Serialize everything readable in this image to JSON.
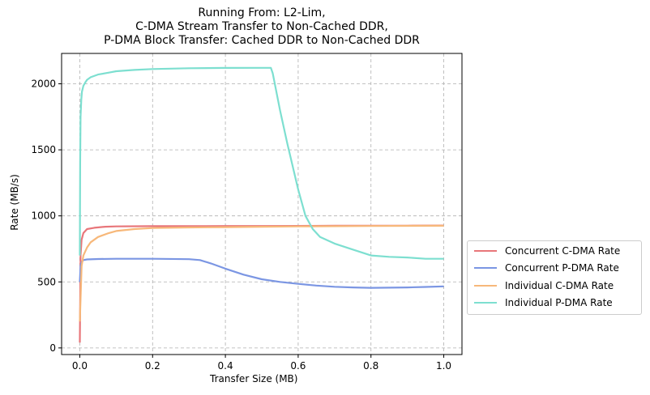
{
  "chart_data": {
    "type": "line",
    "title": [
      "Running From: L2-Lim,",
      "C-DMA Stream Transfer to Non-Cached DDR,",
      "P-DMA Block Transfer: Cached DDR to Non-Cached DDR"
    ],
    "xlabel": "Transfer Size (MB)",
    "ylabel": "Rate (MB/s)",
    "xlim": [
      -0.05,
      1.05
    ],
    "ylim": [
      -50,
      2230
    ],
    "xticks": [
      0.0,
      0.2,
      0.4,
      0.6,
      0.8,
      1.0
    ],
    "xtick_labels": [
      "0.0",
      "0.2",
      "0.4",
      "0.6",
      "0.8",
      "1.0"
    ],
    "yticks": [
      0,
      500,
      1000,
      1500,
      2000
    ],
    "ytick_labels": [
      "0",
      "500",
      "1000",
      "1500",
      "2000"
    ],
    "grid": true,
    "legend_position": "outside-right",
    "series": [
      {
        "name": "Concurrent C-DMA Rate",
        "color": "#e8767a",
        "x": [
          0,
          0.002,
          0.005,
          0.01,
          0.02,
          0.04,
          0.07,
          0.1,
          0.2,
          0.3,
          0.4,
          0.5,
          0.6,
          0.7,
          0.8,
          0.9,
          1.0
        ],
        "y": [
          40,
          700,
          820,
          870,
          900,
          910,
          918,
          920,
          922,
          922,
          923,
          923,
          924,
          925,
          926,
          926,
          927
        ]
      },
      {
        "name": "Concurrent P-DMA Rate",
        "color": "#7b96e3",
        "x": [
          0,
          0.002,
          0.005,
          0.01,
          0.02,
          0.05,
          0.1,
          0.2,
          0.3,
          0.33,
          0.36,
          0.4,
          0.45,
          0.5,
          0.55,
          0.6,
          0.65,
          0.7,
          0.75,
          0.8,
          0.85,
          0.9,
          0.95,
          1.0
        ],
        "y": [
          500,
          620,
          650,
          665,
          670,
          673,
          675,
          675,
          672,
          665,
          640,
          600,
          555,
          520,
          500,
          485,
          472,
          463,
          458,
          455,
          456,
          458,
          462,
          466
        ]
      },
      {
        "name": "Individual C-DMA Rate",
        "color": "#f7b87a",
        "x": [
          0,
          0.005,
          0.01,
          0.02,
          0.03,
          0.05,
          0.08,
          0.1,
          0.15,
          0.2,
          0.3,
          0.4,
          0.5,
          0.6,
          0.8,
          1.0
        ],
        "y": [
          200,
          620,
          700,
          760,
          800,
          840,
          870,
          885,
          900,
          908,
          912,
          915,
          918,
          920,
          923,
          925
        ]
      },
      {
        "name": "Individual P-DMA Rate",
        "color": "#7ddfd0",
        "x": [
          0,
          0.001,
          0.002,
          0.004,
          0.006,
          0.01,
          0.015,
          0.02,
          0.03,
          0.05,
          0.08,
          0.1,
          0.15,
          0.2,
          0.3,
          0.4,
          0.5,
          0.525,
          0.53,
          0.55,
          0.57,
          0.6,
          0.62,
          0.64,
          0.66,
          0.7,
          0.75,
          0.8,
          0.85,
          0.9,
          0.95,
          1.0
        ],
        "y": [
          700,
          1400,
          1750,
          1880,
          1940,
          1985,
          2010,
          2030,
          2050,
          2070,
          2085,
          2095,
          2105,
          2112,
          2118,
          2120,
          2121,
          2121,
          2080,
          1800,
          1550,
          1200,
          1000,
          900,
          840,
          790,
          745,
          700,
          690,
          685,
          675,
          675
        ]
      }
    ]
  }
}
